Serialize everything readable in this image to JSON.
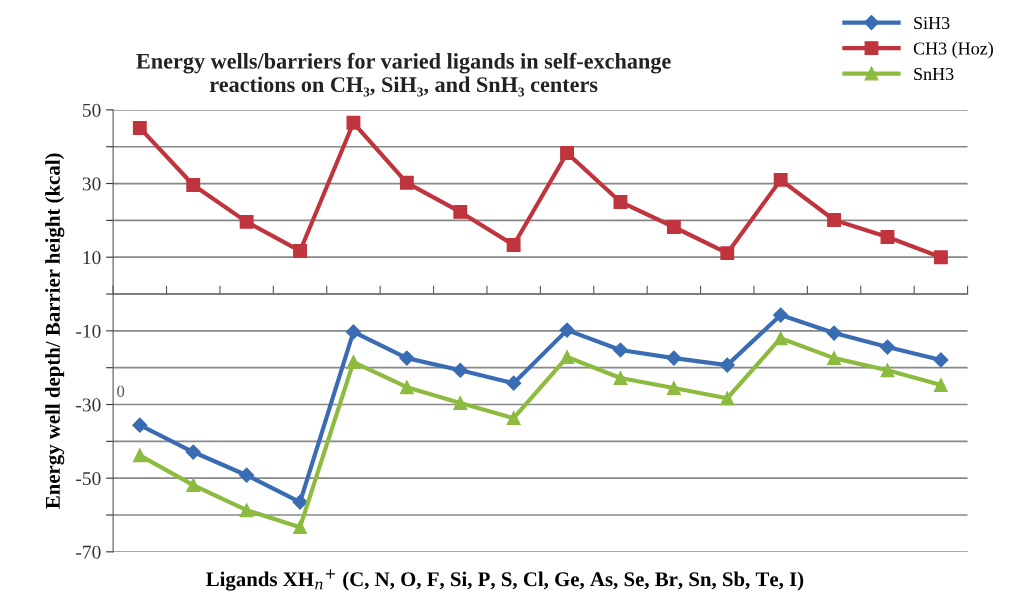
{
  "chart_data": {
    "type": "line",
    "title": "Energy wells/barriers for varied ligands in self-exchange\nreactions on CH₃, SiH₃, and SnH₃ centers",
    "xlabel": "Ligands XH$_{n}$$^{+}$ (C, N, O, F, Si, P, S, Cl, Ge, As, Se, Br, Sn, Sb, Te, I)",
    "ylabel": "Energy well depth/ Barrier height (kcal)",
    "annotations": [
      "0"
    ],
    "categories": [
      null,
      null,
      null,
      null,
      null,
      null,
      null,
      null,
      null,
      null,
      null,
      null,
      null,
      null,
      null,
      null
    ],
    "series": [
      {
        "name": "SiH3",
        "color": "#3a6cb4",
        "marker": "diamond",
        "values": [
          -35.6,
          -42.9,
          -49.2,
          -56.5,
          -10.3,
          -17.4,
          -20.7,
          -24.2,
          -9.8,
          -15.2,
          -17.4,
          -19.3,
          -5.7,
          -10.6,
          -14.4,
          -17.9
        ]
      },
      {
        "name": "CH3 (Hoz)",
        "color": "#c0343e",
        "marker": "square",
        "values": [
          45.1,
          29.6,
          19.6,
          11.7,
          46.5,
          30.2,
          22.3,
          13.3,
          38.3,
          25,
          18.2,
          11.1,
          31,
          20.1,
          15.5,
          10
        ]
      },
      {
        "name": "SnH3",
        "color": "#8cbb3f",
        "marker": "triangle",
        "values": [
          -43.8,
          -51.9,
          -58.7,
          -63.3,
          -18.5,
          -25.3,
          -29.6,
          -33.7,
          -17.1,
          -22.8,
          -25.5,
          -28.3,
          -12,
          -17.4,
          -20.7,
          -24.7
        ]
      }
    ],
    "ylim": [
      -70,
      50
    ],
    "yticks": [
      -70,
      {
        "value": -60,
        "label": null
      },
      -50,
      {
        "value": -40,
        "label": null
      },
      -30,
      {
        "value": -20,
        "label": null
      },
      -10,
      {
        "value": 0,
        "label": null
      },
      10,
      {
        "value": 20,
        "label": null
      },
      30,
      {
        "value": 40,
        "label": null
      },
      50
    ],
    "grid": "y",
    "legend": "top right",
    "line_style": "solid"
  }
}
